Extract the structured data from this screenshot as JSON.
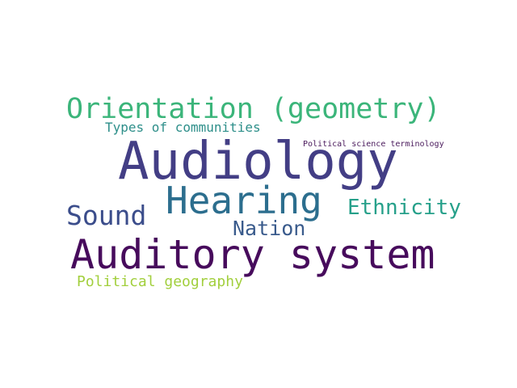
{
  "words": [
    {
      "text": "Orientation (geometry)",
      "color": "#3bb57a"
    },
    {
      "text": "Types of communities",
      "color": "#2e8f8a"
    },
    {
      "text": "Political science terminology",
      "color": "#4a1a5c"
    },
    {
      "text": "Audiology",
      "color": "#433e85"
    },
    {
      "text": "Hearing",
      "color": "#2c6e8e"
    },
    {
      "text": "Sound",
      "color": "#3b4d8b"
    },
    {
      "text": "Ethnicity",
      "color": "#26a08a"
    },
    {
      "text": "Nation",
      "color": "#3a5b8c"
    },
    {
      "text": "Auditory system",
      "color": "#470b5c"
    },
    {
      "text": "Political geography",
      "color": "#a2cf3d"
    }
  ]
}
